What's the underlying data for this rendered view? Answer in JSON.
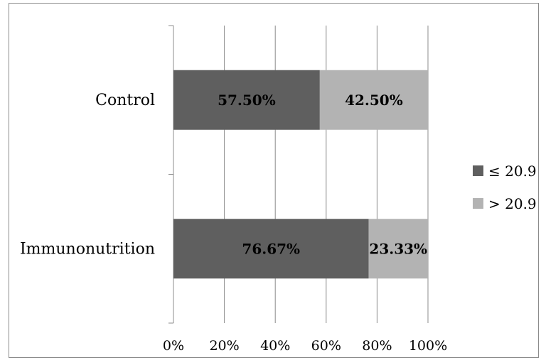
{
  "chart_data": {
    "type": "bar",
    "orientation": "horizontal",
    "stacked": "percent",
    "categories": [
      "Control",
      "Immunonutrition"
    ],
    "series": [
      {
        "name": "≤ 20.9",
        "values": [
          57.5,
          76.67
        ],
        "labels": [
          "57.50%",
          "76.67%"
        ],
        "color": "#5f5f5f"
      },
      {
        "name": "> 20.9",
        "values": [
          42.5,
          23.33
        ],
        "labels": [
          "42.50%",
          "23.33%"
        ],
        "color": "#b3b3b3"
      }
    ],
    "x_ticks": [
      "0%",
      "20%",
      "40%",
      "60%",
      "80%",
      "100%"
    ],
    "xlim": [
      0,
      100
    ],
    "grid": true,
    "legend_position": "right",
    "title": "",
    "xlabel": "",
    "ylabel": ""
  }
}
